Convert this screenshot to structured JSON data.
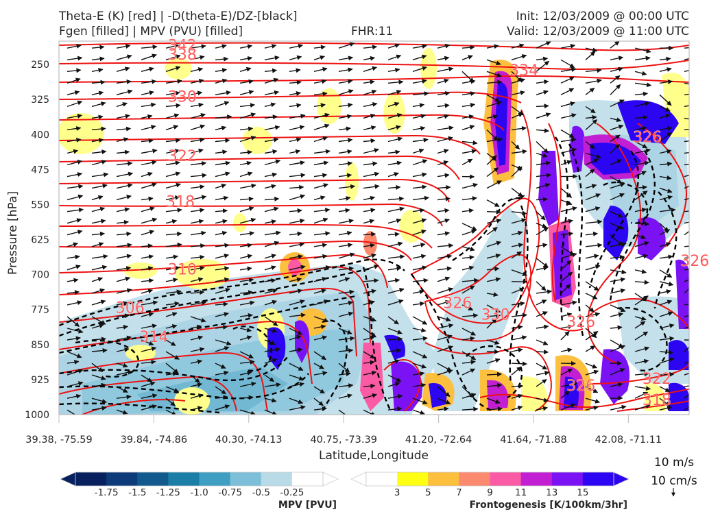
{
  "header": {
    "title_line1": "Theta-E (K) [red] | -D(theta-E)/DZ-[black]",
    "title_line2": "Fgen [filled] | MPV (PVU) [filled]",
    "fhr": "FHR:11",
    "init": "Init: 12/03/2009 @ 00:00 UTC",
    "valid": "Valid: 12/03/2009 @ 11:00 UTC"
  },
  "chart_data": {
    "type": "cross-section",
    "ylabel": "Pressure [hPa]",
    "xlabel": "Latitude,Longitude",
    "y_ticks": [
      250,
      325,
      400,
      475,
      550,
      625,
      700,
      775,
      850,
      925,
      1000
    ],
    "ylim": [
      1000,
      200
    ],
    "x_ticks": [
      "39.38, -75.59",
      "39.84, -74.86",
      "40.30, -74.13",
      "40.75, -73.39",
      "41.20, -72.64",
      "41.64, -71.88",
      "42.08, -71.11"
    ],
    "theta_e_labels": [
      {
        "text": "342",
        "x_index": 1.3,
        "p": 208
      },
      {
        "text": "338",
        "x_index": 1.3,
        "p": 228
      },
      {
        "text": "330",
        "x_index": 1.3,
        "p": 318
      },
      {
        "text": "322",
        "x_index": 1.3,
        "p": 445
      },
      {
        "text": "318",
        "x_index": 1.28,
        "p": 543
      },
      {
        "text": "310",
        "x_index": 1.3,
        "p": 688
      },
      {
        "text": "306",
        "x_index": 0.75,
        "p": 770
      },
      {
        "text": "314",
        "x_index": 1.0,
        "p": 833
      },
      {
        "text": "334",
        "x_index": 4.9,
        "p": 262
      },
      {
        "text": "326",
        "x_index": 6.2,
        "p": 405
      },
      {
        "text": "326",
        "x_index": 4.2,
        "p": 760
      },
      {
        "text": "330",
        "x_index": 4.6,
        "p": 785
      },
      {
        "text": "326",
        "x_index": 5.5,
        "p": 800
      },
      {
        "text": "326",
        "x_index": 5.5,
        "p": 937
      },
      {
        "text": "322",
        "x_index": 6.3,
        "p": 922
      },
      {
        "text": "318",
        "x_index": 6.3,
        "p": 968
      },
      {
        "text": "326",
        "x_index": 6.7,
        "p": 670
      }
    ],
    "wind_reference": {
      "line1": "10 m/s",
      "line2": "10 cm/s"
    },
    "colorbars": [
      {
        "label": "MPV [PVU]",
        "tick_labels": [
          "-1.75",
          "-1.5",
          "-1.25",
          "-1.0",
          "-0.75",
          "-0.5",
          "-0.25"
        ],
        "colors": [
          "#08215e",
          "#0d3b7a",
          "#125a8e",
          "#1b7ea6",
          "#3f9fc3",
          "#7dbfd8",
          "#b9dbe8",
          "#ffffff"
        ]
      },
      {
        "label": "Frontogenesis [K/100km/3hr]",
        "tick_labels": [
          "3",
          "5",
          "7",
          "9",
          "11",
          "13",
          "15"
        ],
        "colors": [
          "#ffffff",
          "#ffff14",
          "#fdbf3e",
          "#fc8a6f",
          "#fb5aa5",
          "#c11fd1",
          "#7a12f4",
          "#2c06f2"
        ]
      }
    ]
  }
}
